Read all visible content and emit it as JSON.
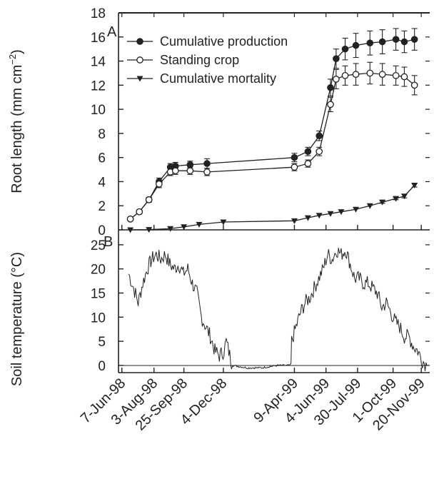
{
  "chart_data": [
    {
      "type": "line",
      "panel": "A",
      "ylabel": "Root length (mm cm",
      "ylabel_sup": "−2",
      "ylabel_close": ")",
      "ylim": [
        0,
        18
      ],
      "yticks": [
        "0",
        "2",
        "4",
        "6",
        "8",
        "10",
        "12",
        "14",
        "16",
        "18"
      ],
      "x_dates": [
        "7-Jun-98",
        "3-Aug-98",
        "25-Sep-98",
        "4-Dec-98",
        "9-Apr-99",
        "4-Jun-99",
        "30-Jul-99",
        "1-Oct-99",
        "20-Nov-99"
      ],
      "legend_position": "top-left",
      "series": [
        {
          "name": "Cumulative production",
          "marker": "filled-circle",
          "x": [
            "1998-06-22",
            "1998-07-08",
            "1998-07-25",
            "1998-08-12",
            "1998-09-01",
            "1998-09-10",
            "1998-10-06",
            "1998-11-05",
            "1999-04-09",
            "1999-05-03",
            "1999-05-23",
            "1999-06-12",
            "1999-06-22",
            "1999-07-08",
            "1999-07-27",
            "1999-08-21",
            "1999-09-12",
            "1999-10-06",
            "1999-10-21",
            "1999-11-08"
          ],
          "values": [
            0.9,
            1.5,
            2.5,
            4.0,
            5.2,
            5.3,
            5.4,
            5.5,
            6.0,
            6.5,
            7.8,
            11.8,
            14.2,
            15.0,
            15.3,
            15.5,
            15.6,
            15.8,
            15.6,
            15.8
          ],
          "error": [
            0.1,
            0.15,
            0.2,
            0.3,
            0.3,
            0.3,
            0.3,
            0.4,
            0.35,
            0.35,
            0.4,
            0.7,
            0.8,
            0.9,
            1.0,
            1.0,
            1.0,
            0.9,
            0.9,
            0.9
          ]
        },
        {
          "name": "Standing crop",
          "marker": "open-circle",
          "x": [
            "1998-06-22",
            "1998-07-08",
            "1998-07-25",
            "1998-08-12",
            "1998-09-01",
            "1998-09-10",
            "1998-10-06",
            "1998-11-05",
            "1999-04-09",
            "1999-05-03",
            "1999-05-23",
            "1999-06-12",
            "1999-06-22",
            "1999-07-08",
            "1999-07-27",
            "1999-08-21",
            "1999-09-12",
            "1999-10-06",
            "1999-10-21",
            "1999-11-08"
          ],
          "values": [
            0.9,
            1.5,
            2.5,
            3.8,
            4.8,
            4.9,
            4.9,
            4.8,
            5.2,
            5.5,
            6.5,
            10.4,
            12.5,
            12.8,
            12.9,
            13.0,
            12.9,
            12.8,
            12.7,
            12.0
          ],
          "error": [
            0.1,
            0.15,
            0.2,
            0.3,
            0.3,
            0.3,
            0.3,
            0.3,
            0.3,
            0.3,
            0.35,
            0.6,
            0.8,
            0.8,
            0.9,
            0.9,
            0.9,
            0.8,
            0.8,
            0.8
          ]
        },
        {
          "name": "Cumulative mortality",
          "marker": "filled-triangle-down",
          "x": [
            "1998-06-22",
            "1998-07-25",
            "1998-09-01",
            "1998-09-25",
            "1998-10-22",
            "1998-12-04",
            "1999-04-09",
            "1999-05-03",
            "1999-05-23",
            "1999-06-12",
            "1999-07-01",
            "1999-07-27",
            "1999-08-21",
            "1999-09-12",
            "1999-10-06",
            "1999-10-21",
            "1999-11-08"
          ],
          "values": [
            0.0,
            0.02,
            0.1,
            0.25,
            0.45,
            0.65,
            0.75,
            1.0,
            1.2,
            1.35,
            1.5,
            1.7,
            2.0,
            2.3,
            2.6,
            2.8,
            3.7
          ],
          "error": [
            0,
            0,
            0,
            0,
            0,
            0,
            0,
            0,
            0,
            0,
            0,
            0,
            0,
            0.1,
            0.1,
            0.15,
            0.15
          ]
        }
      ]
    },
    {
      "type": "line",
      "panel": "B",
      "ylabel": "Soil temperature (°C)",
      "ylim": [
        -1.5,
        27.5
      ],
      "yticks": [
        "0",
        "5",
        "10",
        "15",
        "20",
        "25"
      ],
      "reference_line": 0,
      "series": [
        {
          "name": "",
          "x": [
            "1998-06-19",
            "1998-06-28",
            "1998-07-06",
            "1998-07-14",
            "1998-07-22",
            "1998-07-30",
            "1998-08-07",
            "1998-08-15",
            "1998-08-23",
            "1998-08-31",
            "1998-09-08",
            "1998-09-16",
            "1998-09-24",
            "1998-10-02",
            "1998-10-10",
            "1998-10-18",
            "1998-10-26",
            "1998-11-03",
            "1998-11-11",
            "1998-11-19",
            "1998-11-27",
            "1998-12-05",
            "1998-12-09",
            "1998-12-20",
            "1999-01-15",
            "1999-02-10",
            "1999-03-10",
            "1999-04-03",
            "1999-04-04",
            "1999-04-12",
            "1999-04-20",
            "1999-04-28",
            "1999-05-06",
            "1999-05-14",
            "1999-05-22",
            "1999-05-30",
            "1999-06-07",
            "1999-06-15",
            "1999-06-23",
            "1999-07-01",
            "1999-07-09",
            "1999-07-17",
            "1999-07-25",
            "1999-08-02",
            "1999-08-10",
            "1999-08-18",
            "1999-08-26",
            "1999-09-03",
            "1999-09-11",
            "1999-09-19",
            "1999-09-27",
            "1999-10-05",
            "1999-10-13",
            "1999-10-21",
            "1999-10-29",
            "1999-11-06",
            "1999-11-14",
            "1999-11-22",
            "1999-11-30"
          ],
          "values": [
            19,
            16,
            13,
            17,
            20,
            22,
            23,
            22,
            23,
            21,
            20,
            21,
            19,
            20,
            17,
            15,
            10,
            8,
            6,
            3,
            2,
            3,
            5,
            0,
            -0.5,
            -0.5,
            0,
            0,
            5,
            8,
            11,
            13,
            14,
            16,
            18,
            20,
            23,
            22,
            24,
            23,
            24,
            21,
            18,
            18,
            17,
            17,
            16,
            15,
            12,
            13,
            11,
            9,
            8,
            6,
            6,
            4,
            3,
            1,
            0
          ]
        }
      ]
    }
  ],
  "panel_labels": [
    "A",
    "B"
  ]
}
